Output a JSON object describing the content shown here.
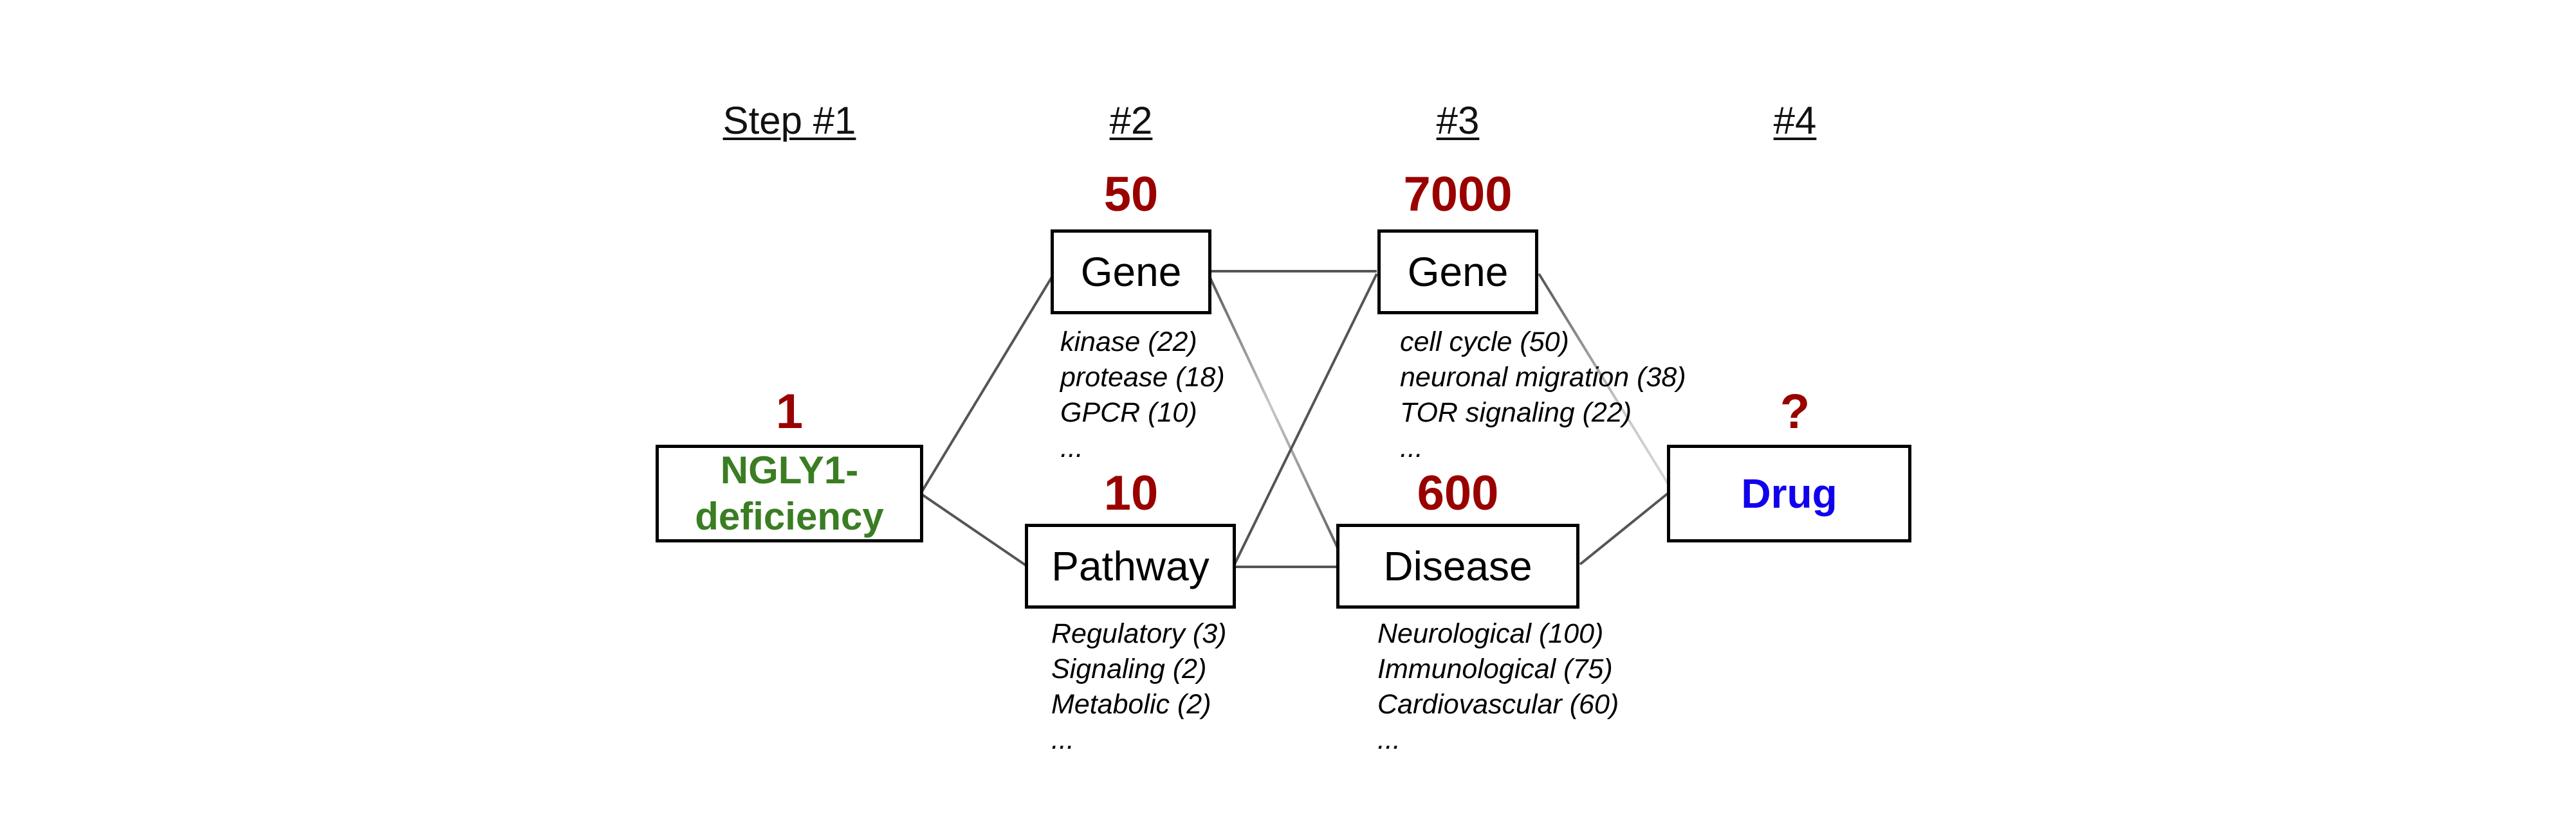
{
  "steps": [
    "Step #1",
    "#2",
    "#3",
    "#4"
  ],
  "nodes": {
    "start": {
      "label": "NGLY1-deficiency",
      "count": "1"
    },
    "gene_step2": {
      "label": "Gene",
      "count": "50",
      "categories": [
        "kinase (22)",
        "protease (18)",
        "GPCR (10)",
        "..."
      ]
    },
    "pathway_step2": {
      "label": "Pathway",
      "count": "10",
      "categories": [
        "Regulatory (3)",
        "Signaling (2)",
        "Metabolic (2)",
        "..."
      ]
    },
    "gene_step3": {
      "label": "Gene",
      "count": "7000",
      "categories": [
        "cell cycle (50)",
        "neuronal migration (38)",
        "TOR signaling (22)",
        "..."
      ]
    },
    "disease_step3": {
      "label": "Disease",
      "count": "600",
      "categories": [
        "Neurological (100)",
        "Immunological (75)",
        "Cardiovascular (60)",
        "..."
      ]
    },
    "drug": {
      "label": "Drug",
      "count": "?"
    }
  },
  "colors": {
    "count": "#990000",
    "start_label": "#3a7d22",
    "drug_label": "#1100ee",
    "connector": "#555555",
    "connector_faded": "#c8c8c8"
  }
}
